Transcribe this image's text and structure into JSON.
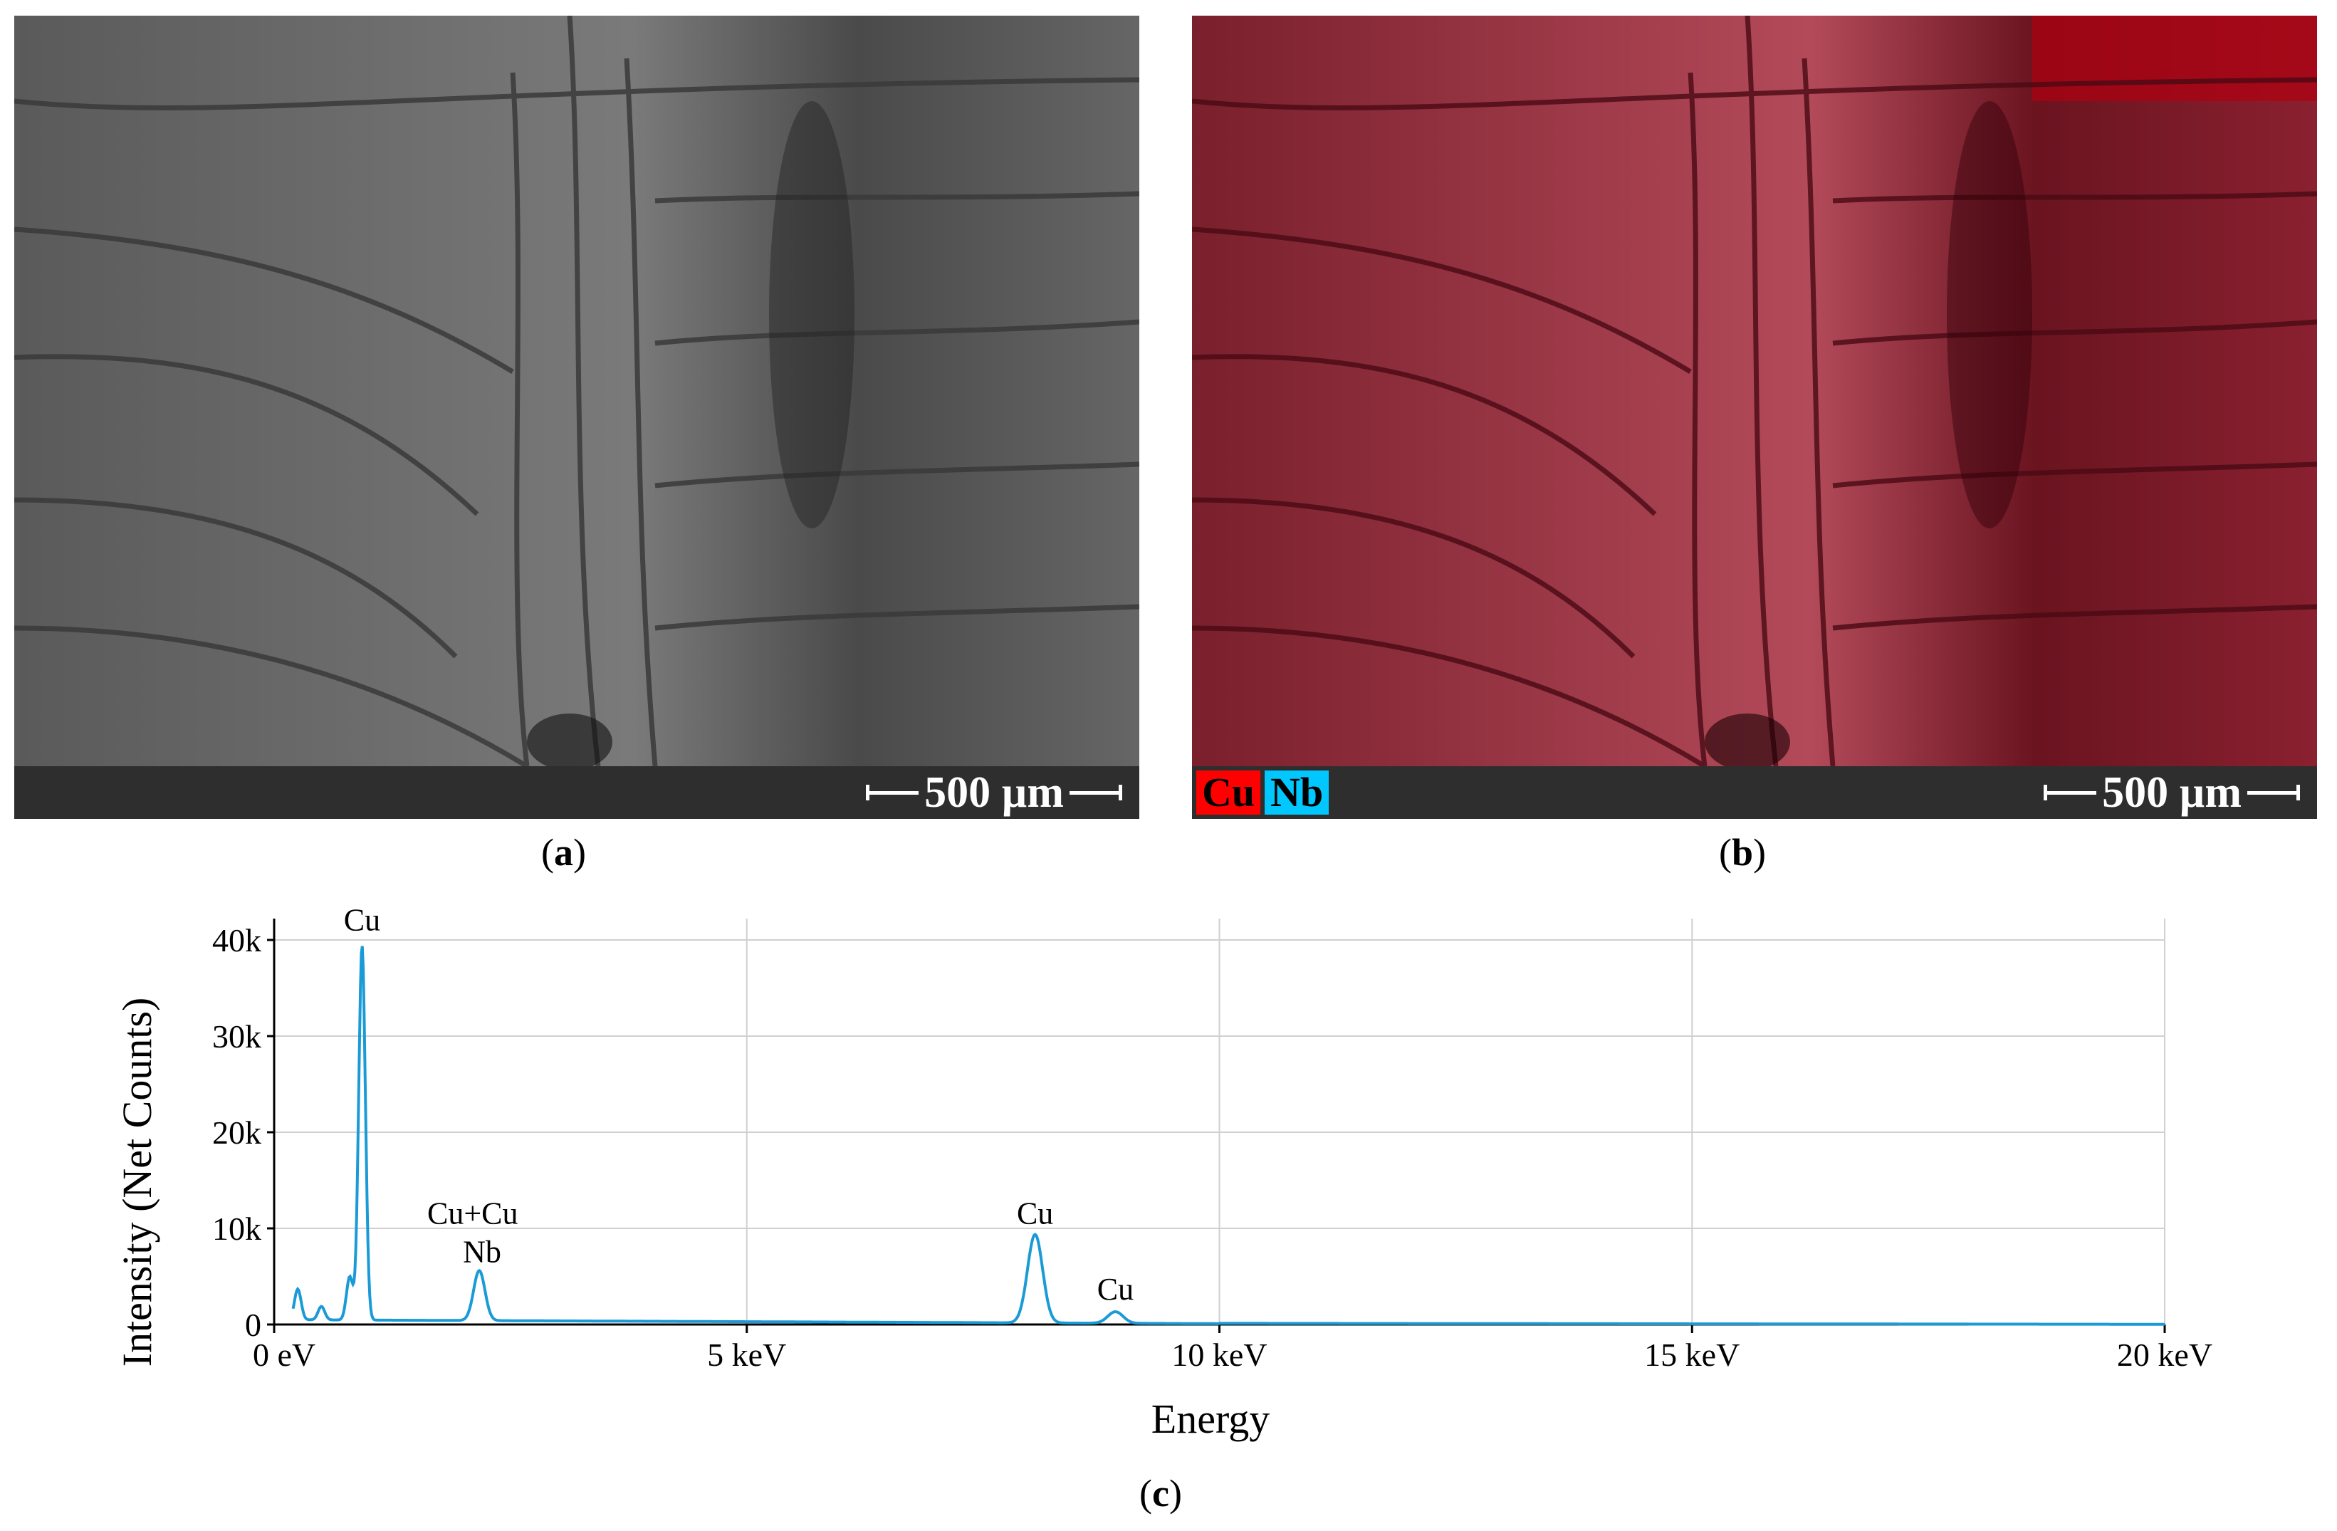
{
  "panels": [
    {
      "caption_letter": "a",
      "scale_label": "500 µm"
    },
    {
      "caption_letter": "b",
      "scale_label": "500 µm",
      "legend": [
        {
          "label": "Cu",
          "color": "#ff0000"
        },
        {
          "label": "Nb",
          "color": "#00c8ff"
        }
      ]
    }
  ],
  "chart_caption_letter": "c",
  "chart_data": {
    "type": "line",
    "xlabel": "Energy",
    "ylabel": "Intensity (Net Counts)",
    "xlim": [
      0,
      20
    ],
    "ylim": [
      0,
      40000
    ],
    "grid": true,
    "line_color": "#1a9ad6",
    "x_ticks": [
      {
        "value": 0,
        "label": "0 eV"
      },
      {
        "value": 5,
        "label": "5 keV"
      },
      {
        "value": 10,
        "label": "10 keV"
      },
      {
        "value": 15,
        "label": "15 keV"
      },
      {
        "value": 20,
        "label": "20 keV"
      }
    ],
    "y_ticks": [
      {
        "value": 0,
        "label": "0"
      },
      {
        "value": 10000,
        "label": "10k"
      },
      {
        "value": 20000,
        "label": "20k"
      },
      {
        "value": 30000,
        "label": "30k"
      },
      {
        "value": 40000,
        "label": "40k"
      }
    ],
    "peaks": [
      {
        "energy": 0.25,
        "counts": 3200
      },
      {
        "energy": 0.5,
        "counts": 1400
      },
      {
        "energy": 0.8,
        "counts": 4500
      },
      {
        "energy": 0.93,
        "counts": 39000
      },
      {
        "energy": 2.17,
        "counts": 5200
      },
      {
        "energy": 8.05,
        "counts": 9200
      },
      {
        "energy": 8.9,
        "counts": 1200
      }
    ],
    "annotations": [
      {
        "text": "Cu",
        "x": 0.93,
        "y": 41000
      },
      {
        "text": "Cu+Cu",
        "x": 2.1,
        "y": 10500
      },
      {
        "text": "Nb",
        "x": 2.2,
        "y": 6500
      },
      {
        "text": "Cu",
        "x": 8.05,
        "y": 10500
      },
      {
        "text": "Cu",
        "x": 8.9,
        "y": 2600
      }
    ]
  }
}
